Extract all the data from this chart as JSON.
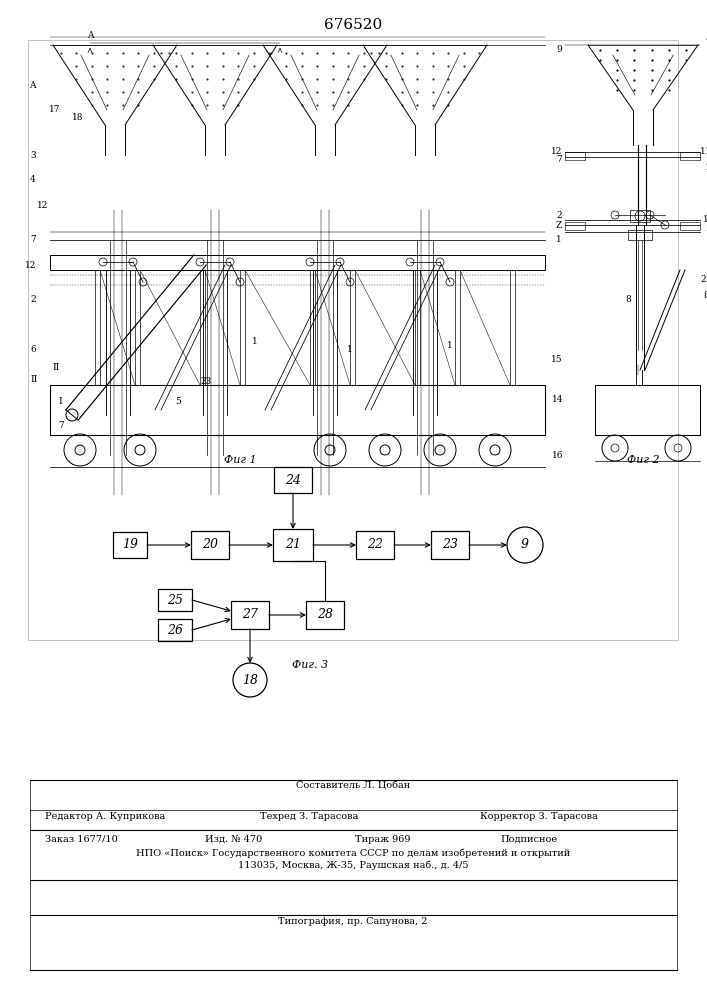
{
  "title": "676520",
  "fig1_caption": "Фиг 1",
  "fig2_caption": "Фиг 2",
  "fig3_caption": "Фиг. 3",
  "footer_sestavitel": "Составитель Л. Цобан",
  "footer_editor": "Редактор А. Куприкова",
  "footer_techred": "Техред З. Тарасова",
  "footer_corrector": "Корректор З. Тарасова",
  "footer_order": "Заказ 1677/10",
  "footer_izd": "Изд. № 470",
  "footer_tirazh": "Тираж 969",
  "footer_podpisnoe": "Подписное",
  "footer_npo": "НПО «Поиск» Государственного комитета СССР по делам изобретений и открытий",
  "footer_address": "113035, Москва, Ж-35, Раушская наб., д. 4/5",
  "footer_typography": "Типография, пр. Сапунова, 2"
}
